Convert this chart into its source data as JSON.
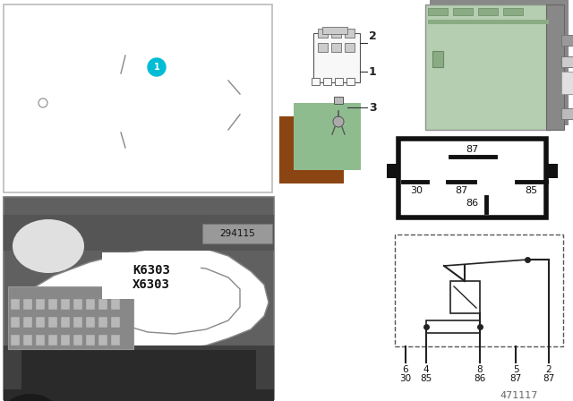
{
  "bg_color": "#ffffff",
  "cyan": "#00bcd4",
  "relay_green_light": "#b5cdb0",
  "relay_green_dark": "#8aab84",
  "brown": "#8B4513",
  "swatch_green": "#8fbc8f",
  "photo_bg": "#606060",
  "photo_dark": "#3a3a3a",
  "photo_mid": "#808080",
  "photo_light": "#aaaaaa",
  "outline_color": "#444444",
  "connector_fill": "#f0f0f0",
  "connector_edge": "#555555",
  "ref_num": "471117",
  "diagram_num": "294115",
  "pin_top": [
    "6",
    "4",
    "8",
    "5",
    "2"
  ],
  "pin_bot": [
    "30",
    "85",
    "86",
    "87",
    "87"
  ],
  "relay_box_labels": [
    "87",
    "30",
    "87",
    "85",
    "86"
  ],
  "car_box_color": "#cccccc",
  "car_line_color": "#888888"
}
